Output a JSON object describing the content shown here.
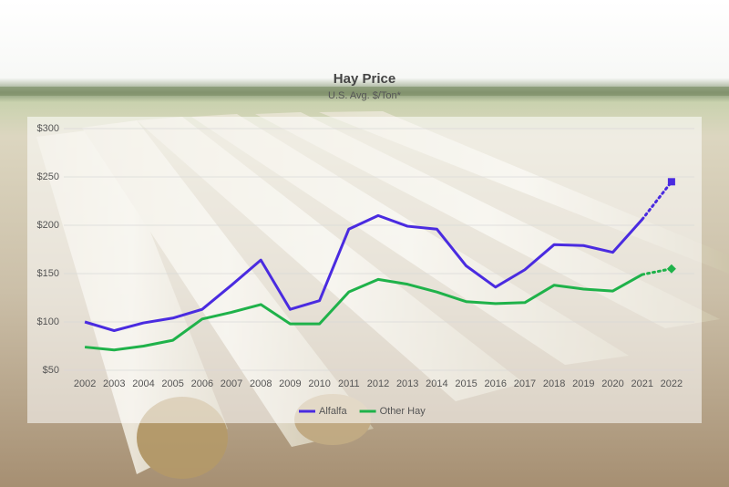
{
  "chart_data": {
    "type": "line",
    "title": "Hay Price",
    "subtitle": "U.S. Avg. $/Ton*",
    "categories": [
      "2002",
      "2003",
      "2004",
      "2005",
      "2006",
      "2007",
      "2008",
      "2009",
      "2010",
      "2011",
      "2012",
      "2013",
      "2014",
      "2015",
      "2016",
      "2017",
      "2018",
      "2019",
      "2020",
      "2021",
      "2022"
    ],
    "series": [
      {
        "name": "Alfalfa",
        "color": "#4a2be0",
        "values": [
          100,
          91,
          99,
          104,
          113,
          138,
          164,
          113,
          122,
          196,
          210,
          199,
          196,
          158,
          136,
          154,
          180,
          179,
          172,
          206,
          245
        ]
      },
      {
        "name": "Other Hay",
        "color": "#1fb24a",
        "values": [
          74,
          71,
          75,
          81,
          103,
          110,
          118,
          98,
          98,
          131,
          144,
          139,
          131,
          121,
          119,
          120,
          138,
          134,
          132,
          149,
          155
        ]
      }
    ],
    "ylim": [
      50,
      300
    ],
    "yticks": [
      {
        "value": 50,
        "label": "$50"
      },
      {
        "value": 100,
        "label": "$100"
      },
      {
        "value": 150,
        "label": "$150"
      },
      {
        "value": 200,
        "label": "$200"
      },
      {
        "value": 250,
        "label": "$250"
      },
      {
        "value": 300,
        "label": "$300"
      }
    ],
    "grid": true,
    "legend": "bottom"
  }
}
